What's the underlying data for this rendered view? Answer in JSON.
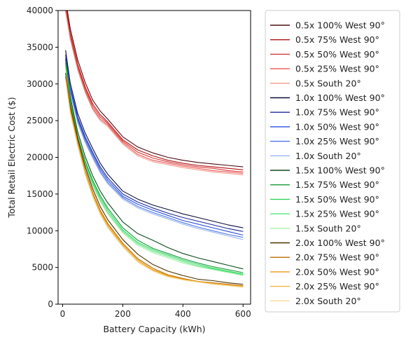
{
  "chart_data": {
    "type": "line",
    "xlabel": "Battery Capacity (kWh)",
    "ylabel": "Total Retail Electric Cost ($)",
    "xlim": [
      -15,
      625
    ],
    "ylim": [
      0,
      40000
    ],
    "xticks": [
      0,
      200,
      400,
      600
    ],
    "yticks": [
      0,
      5000,
      10000,
      15000,
      20000,
      25000,
      30000,
      35000,
      40000
    ],
    "legend_position": "outside-right",
    "grid": false,
    "x": [
      10,
      25,
      50,
      75,
      100,
      125,
      150,
      200,
      250,
      300,
      350,
      400,
      450,
      500,
      550,
      600
    ],
    "series": [
      {
        "name": "0.5x 100% West 90°",
        "color": "#4a0d12",
        "values": [
          41500,
          37600,
          33300,
          30200,
          27800,
          26300,
          25200,
          22800,
          21400,
          20600,
          20000,
          19600,
          19300,
          19100,
          18900,
          18700
        ]
      },
      {
        "name": "0.5x 75% West 90°",
        "color": "#b01414",
        "values": [
          40800,
          37000,
          32700,
          29600,
          27300,
          25800,
          24800,
          22400,
          21000,
          20200,
          19600,
          19200,
          18900,
          18700,
          18500,
          18300
        ]
      },
      {
        "name": "0.5x 50% West 90°",
        "color": "#d63a3a",
        "values": [
          40300,
          36600,
          32400,
          29300,
          27000,
          25500,
          24600,
          22200,
          20700,
          19900,
          19400,
          19000,
          18700,
          18500,
          18200,
          18000
        ]
      },
      {
        "name": "0.5x 25% West 90°",
        "color": "#ef5555",
        "values": [
          40000,
          36300,
          32100,
          29000,
          26700,
          25200,
          24400,
          22000,
          20400,
          19600,
          19200,
          18800,
          18500,
          18200,
          18000,
          17800
        ]
      },
      {
        "name": "0.5x South 20°",
        "color": "#f59a8a",
        "values": [
          39800,
          36100,
          31900,
          28800,
          26500,
          25000,
          24200,
          21800,
          20200,
          19400,
          19000,
          18600,
          18300,
          18000,
          17800,
          17600
        ]
      },
      {
        "name": "1.0x 100% West 90°",
        "color": "#0b0f3a",
        "values": [
          34600,
          30200,
          26000,
          23300,
          21200,
          19200,
          17700,
          15400,
          14300,
          13500,
          12900,
          12300,
          11800,
          11300,
          10800,
          10400
        ]
      },
      {
        "name": "1.0x 75% West 90°",
        "color": "#1c2a9a",
        "values": [
          34000,
          29600,
          25500,
          22800,
          20700,
          18700,
          17200,
          15000,
          13900,
          13100,
          12400,
          11800,
          11300,
          10800,
          10300,
          9900
        ]
      },
      {
        "name": "1.0x 50% West 90°",
        "color": "#2c4ee0",
        "values": [
          33700,
          29300,
          25200,
          22500,
          20400,
          18400,
          16900,
          14700,
          13600,
          12800,
          12100,
          11400,
          10900,
          10400,
          9900,
          9400
        ]
      },
      {
        "name": "1.0x 25% West 90°",
        "color": "#4a78e8",
        "values": [
          33400,
          29000,
          24900,
          22200,
          20100,
          18100,
          16600,
          14500,
          13300,
          12500,
          11800,
          11100,
          10500,
          10000,
          9500,
          9100
        ]
      },
      {
        "name": "1.0x South 20°",
        "color": "#9ab5f0",
        "values": [
          33200,
          28800,
          24700,
          22000,
          19900,
          17900,
          16400,
          14300,
          13100,
          12300,
          11600,
          10900,
          10300,
          9800,
          9300,
          8800
        ]
      },
      {
        "name": "1.5x 100% West 90°",
        "color": "#0d4a1c",
        "values": [
          33400,
          28300,
          23500,
          20100,
          17500,
          15400,
          13800,
          11200,
          9600,
          8700,
          7700,
          6900,
          6300,
          5800,
          5300,
          4800
        ]
      },
      {
        "name": "1.5x 75% West 90°",
        "color": "#1a9a3a",
        "values": [
          32900,
          27800,
          22900,
          19500,
          16900,
          14800,
          13100,
          10400,
          8700,
          7600,
          6900,
          6200,
          5600,
          5100,
          4700,
          4300
        ]
      },
      {
        "name": "1.5x 50% West 90°",
        "color": "#2ad45a",
        "values": [
          32600,
          27500,
          22600,
          19200,
          16600,
          14500,
          12800,
          10100,
          8400,
          7400,
          6700,
          6000,
          5400,
          4900,
          4500,
          4100
        ]
      },
      {
        "name": "1.5x 25% West 90°",
        "color": "#55e880",
        "values": [
          32300,
          27200,
          22300,
          18900,
          16300,
          14200,
          12500,
          9900,
          8200,
          7200,
          6500,
          5800,
          5200,
          4800,
          4400,
          4000
        ]
      },
      {
        "name": "1.5x South 20°",
        "color": "#a6f0a6",
        "values": [
          32000,
          27000,
          22100,
          18700,
          16100,
          14000,
          12300,
          9700,
          8000,
          7000,
          6300,
          5600,
          5100,
          4700,
          4300,
          3900
        ]
      },
      {
        "name": "2.0x 100% West 90°",
        "color": "#4a3200",
        "values": [
          31500,
          27100,
          22600,
          18700,
          15700,
          13300,
          11500,
          8800,
          6800,
          5400,
          4500,
          3900,
          3400,
          3200,
          2900,
          2700
        ]
      },
      {
        "name": "2.0x 75% West 90°",
        "color": "#c06a00",
        "values": [
          31000,
          26600,
          22100,
          18200,
          15200,
          12800,
          11000,
          8300,
          6200,
          4900,
          4000,
          3500,
          3100,
          2900,
          2700,
          2500
        ]
      },
      {
        "name": "2.0x 50% West 90°",
        "color": "#e89a10",
        "values": [
          30800,
          26400,
          21900,
          18000,
          15000,
          12600,
          10800,
          8100,
          6000,
          4700,
          3900,
          3400,
          3100,
          2800,
          2600,
          2400
        ]
      },
      {
        "name": "2.0x 25% West 90°",
        "color": "#f0b840",
        "values": [
          30600,
          26200,
          21700,
          17800,
          14800,
          12400,
          10600,
          7900,
          5800,
          4600,
          3800,
          3300,
          3000,
          2800,
          2600,
          2400
        ]
      },
      {
        "name": "2.0x South 20°",
        "color": "#f8dc98",
        "values": [
          30400,
          26000,
          21500,
          17600,
          14600,
          12200,
          10400,
          7800,
          5700,
          4500,
          3700,
          3300,
          3000,
          2700,
          2500,
          2300
        ]
      }
    ]
  }
}
